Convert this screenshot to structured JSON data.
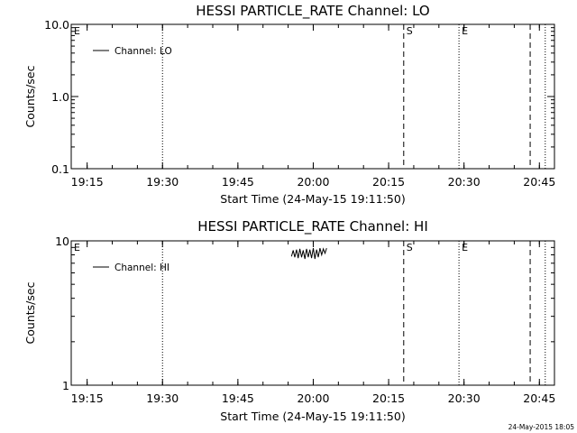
{
  "chart_data": [
    {
      "type": "line",
      "title": "HESSI PARTICLE_RATE Channel: LO",
      "xlabel": "Start Time (24-May-15 19:11:50)",
      "ylabel": "Counts/sec",
      "yscale": "log",
      "xlim": [
        "19:11:50",
        "20:48:00"
      ],
      "ylim": [
        0.1,
        10.0
      ],
      "xticks": [
        "19:15",
        "19:30",
        "19:45",
        "20:00",
        "20:15",
        "20:30",
        "20:45"
      ],
      "yticks": [
        "0.1",
        "1.0",
        "10.0"
      ],
      "legend": {
        "position": "top-left",
        "entries": [
          "Channel: LO"
        ]
      },
      "series": [
        {
          "name": "Channel: LO",
          "x": [],
          "y": []
        }
      ],
      "markers": [
        {
          "time": "19:11:50",
          "style": "solid",
          "label": "E"
        },
        {
          "time": "19:30:00",
          "style": "dotted",
          "label": ""
        },
        {
          "time": "20:18:00",
          "style": "dashed",
          "label": "S"
        },
        {
          "time": "20:29:00",
          "style": "dotted",
          "label": "E"
        },
        {
          "time": "20:43:10",
          "style": "dashed",
          "label": ""
        },
        {
          "time": "20:46:10",
          "style": "dotted",
          "label": ""
        }
      ]
    },
    {
      "type": "line",
      "title": "HESSI PARTICLE_RATE Channel: HI",
      "xlabel": "Start Time (24-May-15 19:11:50)",
      "ylabel": "Counts/sec",
      "yscale": "log",
      "xlim": [
        "19:11:50",
        "20:48:00"
      ],
      "ylim": [
        1,
        10
      ],
      "xticks": [
        "19:15",
        "19:30",
        "19:45",
        "20:00",
        "20:15",
        "20:30",
        "20:45"
      ],
      "yticks": [
        "1",
        "10"
      ],
      "legend": {
        "position": "top-left",
        "entries": [
          "Channel: HI"
        ]
      },
      "series": [
        {
          "name": "Channel: HI",
          "x": [
            "19:55:40",
            "19:56:00",
            "19:56:20",
            "19:56:40",
            "19:57:00",
            "19:57:20",
            "19:57:40",
            "19:58:00",
            "19:58:20",
            "19:58:40",
            "19:59:00",
            "19:59:20",
            "19:59:40",
            "20:00:00",
            "20:00:20",
            "20:00:40",
            "20:01:00",
            "20:01:20",
            "20:01:40",
            "20:02:00",
            "20:02:20",
            "20:02:40"
          ],
          "y": [
            7.8,
            8.6,
            7.7,
            8.7,
            7.6,
            8.8,
            7.7,
            8.6,
            7.5,
            8.8,
            7.7,
            8.7,
            7.6,
            8.9,
            7.5,
            8.7,
            7.7,
            8.9,
            8.0,
            8.8,
            8.2,
            8.9
          ]
        }
      ],
      "markers": [
        {
          "time": "19:11:50",
          "style": "solid",
          "label": "E"
        },
        {
          "time": "19:30:00",
          "style": "dotted",
          "label": ""
        },
        {
          "time": "20:18:00",
          "style": "dashed",
          "label": "S"
        },
        {
          "time": "20:29:00",
          "style": "dotted",
          "label": "E"
        },
        {
          "time": "20:43:10",
          "style": "dashed",
          "label": ""
        },
        {
          "time": "20:46:10",
          "style": "dotted",
          "label": ""
        }
      ]
    }
  ],
  "footer": {
    "timestamp": "24-May-2015 18:05"
  }
}
